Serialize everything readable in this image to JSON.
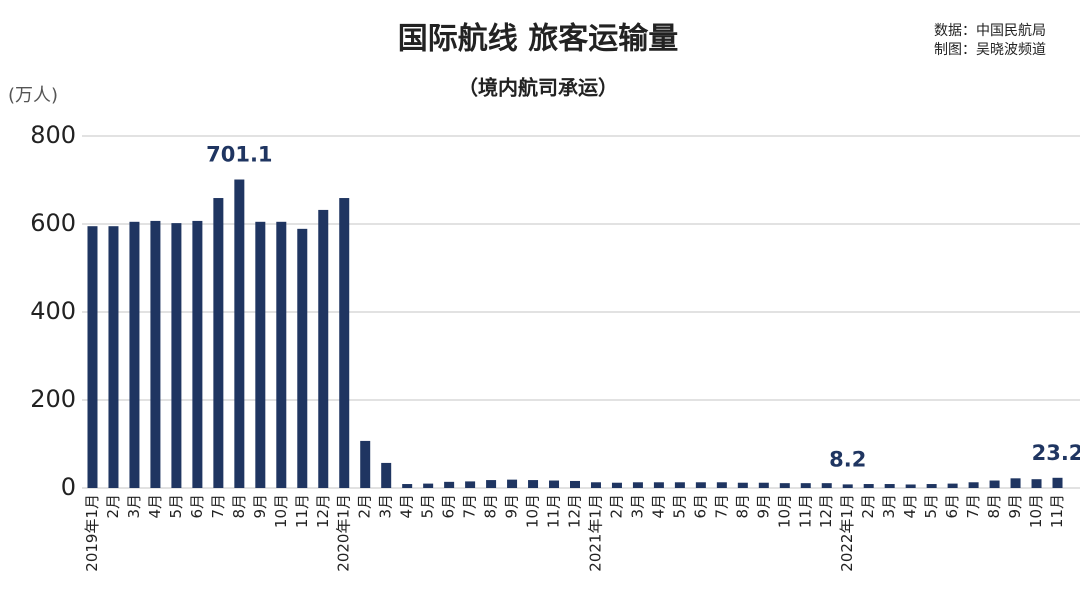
{
  "chart_data": {
    "type": "bar",
    "title": "国际航线 旅客运输量",
    "subtitle": "（境内航司承运）",
    "y_unit": "(万人)",
    "source": "数据：中国民航局",
    "credit": "制图：吴晓波频道",
    "categories": [
      "2019年1月",
      "2月",
      "3月",
      "4月",
      "5月",
      "6月",
      "7月",
      "8月",
      "9月",
      "10月",
      "11月",
      "12月",
      "2020年1月",
      "2月",
      "3月",
      "4月",
      "5月",
      "6月",
      "7月",
      "8月",
      "9月",
      "10月",
      "11月",
      "12月",
      "2021年1月",
      "2月",
      "3月",
      "4月",
      "5月",
      "6月",
      "7月",
      "8月",
      "9月",
      "10月",
      "11月",
      "12月",
      "2022年1月",
      "2月",
      "3月",
      "4月",
      "5月",
      "6月",
      "7月",
      "8月",
      "9月",
      "10月",
      "11月"
    ],
    "values": [
      595,
      595,
      605,
      607,
      602,
      607,
      659,
      701.1,
      605,
      605,
      589,
      632,
      659,
      107,
      57,
      9,
      10,
      14,
      15,
      18,
      19,
      18,
      17,
      16,
      13,
      12,
      13,
      13,
      13,
      13,
      13,
      12,
      12,
      11,
      11,
      11,
      8.2,
      9,
      9,
      8,
      9,
      10,
      13,
      17,
      22,
      20,
      23.2
    ],
    "value_labels": [
      null,
      null,
      null,
      null,
      null,
      null,
      null,
      "701.1",
      null,
      null,
      null,
      null,
      null,
      null,
      null,
      null,
      null,
      null,
      null,
      null,
      null,
      null,
      null,
      null,
      null,
      null,
      null,
      null,
      null,
      null,
      null,
      null,
      null,
      null,
      null,
      null,
      "8.2",
      null,
      null,
      null,
      null,
      null,
      null,
      null,
      null,
      null,
      "23.2"
    ],
    "color": "#1f3561",
    "ylim": [
      0,
      800
    ],
    "yticks": [
      0,
      200,
      400,
      600,
      800
    ],
    "grid": true
  }
}
